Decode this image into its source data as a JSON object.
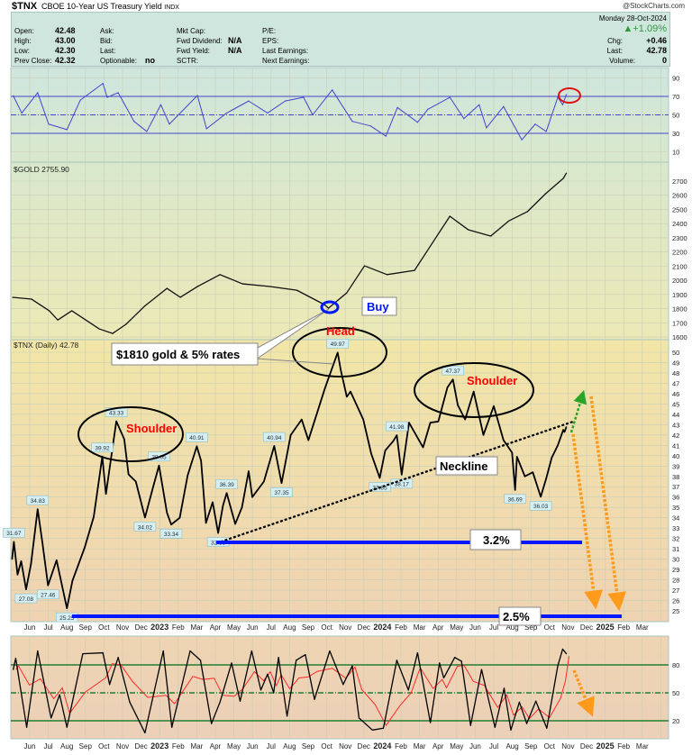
{
  "header": {
    "symbol": "$TNX",
    "name": "CBOE 10-Year US Treasury Yield",
    "exchange": "INDX",
    "copyright": "@StockCharts.com"
  },
  "info": {
    "open_label": "Open:",
    "open": "42.48",
    "high_label": "High:",
    "high": "43.00",
    "low_label": "Low:",
    "low": "42.30",
    "prev_close_label": "Prev Close:",
    "prev_close": "42.32",
    "ask_label": "Ask:",
    "bid_label": "Bid:",
    "last_label_mid": "Last:",
    "optionable_label": "Optionable:",
    "optionable": "no",
    "mkt_cap_label": "Mkt Cap:",
    "fwd_dividend_label": "Fwd Dividend:",
    "fwd_dividend": "N/A",
    "fwd_yield_label": "Fwd Yield:",
    "fwd_yield": "N/A",
    "sctr_label": "SCTR:",
    "pe_label": "P/E:",
    "eps_label": "EPS:",
    "last_earnings_label": "Last Earnings:",
    "next_earnings_label": "Next Earnings:",
    "date": "Monday  28-Oct-2024",
    "pct_change": "▲+1.09%",
    "chg_label": "Chg:",
    "chg": "+0.46",
    "last_label": "Last:",
    "last": "42.78",
    "volume_label": "Volume:",
    "volume": "0",
    "up_color": "#2e9b3a"
  },
  "annotations": {
    "left_shoulder": "Shoulder",
    "head": "Head",
    "right_shoulder": "Shoulder",
    "neckline": "Neckline",
    "callout": "$1810 gold & 5% rates",
    "buy": "Buy",
    "level_high": "3.2%",
    "level_low": "2.5%",
    "text_color": "#ff0000",
    "level_color": "#0018ff",
    "target_arrow_color": "#ff9a1a",
    "up_arrow_color": "#2aa52a"
  },
  "chart_data": [
    {
      "panel": "rsi",
      "type": "line",
      "color": "#4444cc",
      "yticks": [
        "10",
        "30",
        "50",
        "70",
        "90"
      ],
      "reference_lines": [
        30,
        50,
        70
      ],
      "points": [
        [
          "2022-05-05",
          70.6
        ],
        [
          "2022-05-19",
          52
        ],
        [
          "2022-06-14",
          74
        ],
        [
          "2022-07-02",
          40
        ],
        [
          "2022-08-01",
          34
        ],
        [
          "2022-08-23",
          66
        ],
        [
          "2022-09-29",
          84
        ],
        [
          "2022-10-06",
          69
        ],
        [
          "2022-10-24",
          74
        ],
        [
          "2022-11-19",
          43
        ],
        [
          "2022-12-10",
          32
        ],
        [
          "2023-01-02",
          61
        ],
        [
          "2023-01-16",
          40
        ],
        [
          "2023-03-03",
          71
        ],
        [
          "2023-03-18",
          35
        ],
        [
          "2023-04-20",
          52
        ],
        [
          "2023-05-26",
          65
        ],
        [
          "2023-06-26",
          52
        ],
        [
          "2023-07-25",
          65
        ],
        [
          "2023-08-24",
          69
        ],
        [
          "2023-09-08",
          50
        ],
        [
          "2023-10-10",
          77
        ],
        [
          "2023-11-12",
          43
        ],
        [
          "2023-12-12",
          38
        ],
        [
          "2024-01-06",
          27
        ],
        [
          "2024-01-25",
          58
        ],
        [
          "2024-02-27",
          42
        ],
        [
          "2024-03-15",
          56
        ],
        [
          "2024-04-20",
          69
        ],
        [
          "2024-05-13",
          46
        ],
        [
          "2024-06-07",
          61
        ],
        [
          "2024-06-19",
          36
        ],
        [
          "2024-07-17",
          59
        ],
        [
          "2024-08-16",
          23
        ],
        [
          "2024-09-07",
          40
        ],
        [
          "2024-09-25",
          32
        ],
        [
          "2024-10-14",
          69
        ],
        [
          "2024-10-22",
          61
        ],
        [
          "2024-10-28",
          72
        ]
      ]
    },
    {
      "panel": "gold",
      "type": "line",
      "title": "$GOLD 2755.90",
      "color": "#111111",
      "yticks": [
        "1600",
        "1700",
        "1800",
        "1900",
        "2000",
        "2100",
        "2200",
        "2300",
        "2400",
        "2500",
        "2600",
        "2700"
      ],
      "points": [
        [
          "2022-05-04",
          1880
        ],
        [
          "2022-06-04",
          1867
        ],
        [
          "2022-07-03",
          1785
        ],
        [
          "2022-07-17",
          1720
        ],
        [
          "2022-08-09",
          1785
        ],
        [
          "2022-09-23",
          1657
        ],
        [
          "2022-10-15",
          1625
        ],
        [
          "2022-11-06",
          1690
        ],
        [
          "2022-12-06",
          1816
        ],
        [
          "2023-01-12",
          1943
        ],
        [
          "2023-02-03",
          1880
        ],
        [
          "2023-03-03",
          1956
        ],
        [
          "2023-04-09",
          2040
        ],
        [
          "2023-05-16",
          1975
        ],
        [
          "2023-06-30",
          1956
        ],
        [
          "2023-08-13",
          1930
        ],
        [
          "2023-09-27",
          1829
        ],
        [
          "2023-10-04",
          1804
        ],
        [
          "2023-11-03",
          1912
        ],
        [
          "2023-12-02",
          2102
        ],
        [
          "2024-01-08",
          2040
        ],
        [
          "2024-02-22",
          2070
        ],
        [
          "2024-03-22",
          2261
        ],
        [
          "2024-04-20",
          2452
        ],
        [
          "2024-05-20",
          2357
        ],
        [
          "2024-06-26",
          2312
        ],
        [
          "2024-07-26",
          2420
        ],
        [
          "2024-08-25",
          2484
        ],
        [
          "2024-09-24",
          2611
        ],
        [
          "2024-10-23",
          2719
        ],
        [
          "2024-10-28",
          2755.9
        ]
      ]
    },
    {
      "panel": "tnx",
      "type": "line",
      "title": "$TNX (Daily) 42.78",
      "color": "#000000",
      "yticks": [
        "25",
        "26",
        "27",
        "28",
        "29",
        "30",
        "31",
        "32",
        "33",
        "34",
        "35",
        "36",
        "37",
        "38",
        "39",
        "40",
        "41",
        "42",
        "43",
        "44",
        "45",
        "46",
        "47",
        "48",
        "49",
        "50"
      ],
      "points": [
        [
          "2022-05-03",
          30.0
        ],
        [
          "2022-05-06",
          31.67
        ],
        [
          "2022-05-12",
          28.5
        ],
        [
          "2022-05-18",
          29.8
        ],
        [
          "2022-05-26",
          27.08
        ],
        [
          "2022-06-03",
          29.5
        ],
        [
          "2022-06-14",
          34.83
        ],
        [
          "2022-06-22",
          31.5
        ],
        [
          "2022-07-01",
          27.46
        ],
        [
          "2022-07-15",
          29.9
        ],
        [
          "2022-08-01",
          25.25
        ],
        [
          "2022-08-10",
          27.9
        ],
        [
          "2022-08-30",
          31.1
        ],
        [
          "2022-09-14",
          34.1
        ],
        [
          "2022-09-28",
          39.92
        ],
        [
          "2022-10-04",
          36.3
        ],
        [
          "2022-10-21",
          43.33
        ],
        [
          "2022-11-03",
          41.6
        ],
        [
          "2022-11-10",
          38.2
        ],
        [
          "2022-11-22",
          37.5
        ],
        [
          "2022-12-07",
          34.02
        ],
        [
          "2022-12-20",
          36.9
        ],
        [
          "2022-12-30",
          39.05
        ],
        [
          "2023-01-12",
          34.5
        ],
        [
          "2023-01-19",
          33.34
        ],
        [
          "2023-02-02",
          34
        ],
        [
          "2023-02-15",
          38.1
        ],
        [
          "2023-03-02",
          40.91
        ],
        [
          "2023-03-09",
          39.5
        ],
        [
          "2023-03-17",
          33.5
        ],
        [
          "2023-03-28",
          35.5
        ],
        [
          "2023-04-06",
          32.53
        ],
        [
          "2023-04-14",
          35.2
        ],
        [
          "2023-04-20",
          36.39
        ],
        [
          "2023-05-04",
          33.4
        ],
        [
          "2023-05-15",
          35
        ],
        [
          "2023-05-26",
          38.5
        ],
        [
          "2023-06-01",
          36
        ],
        [
          "2023-06-20",
          37.5
        ],
        [
          "2023-07-07",
          40.94
        ],
        [
          "2023-07-19",
          37.35
        ],
        [
          "2023-08-03",
          42
        ],
        [
          "2023-08-21",
          43.5
        ],
        [
          "2023-09-01",
          41.5
        ],
        [
          "2023-09-28",
          46.5
        ],
        [
          "2023-10-19",
          49.97
        ],
        [
          "2023-10-24",
          48.3
        ],
        [
          "2023-11-03",
          45.7
        ],
        [
          "2023-11-09",
          46.2
        ],
        [
          "2023-11-30",
          43.5
        ],
        [
          "2023-12-13",
          40.2
        ],
        [
          "2023-12-27",
          37.85
        ],
        [
          "2024-01-05",
          40.5
        ],
        [
          "2024-01-18",
          41.4
        ],
        [
          "2024-01-24",
          41.98
        ],
        [
          "2024-02-01",
          38.17
        ],
        [
          "2024-02-13",
          43.2
        ],
        [
          "2024-03-07",
          40.8
        ],
        [
          "2024-03-19",
          43.2
        ],
        [
          "2024-04-01",
          43.3
        ],
        [
          "2024-04-16",
          46.6
        ],
        [
          "2024-04-25",
          47.37
        ],
        [
          "2024-05-03",
          44.9
        ],
        [
          "2024-05-15",
          43.5
        ],
        [
          "2024-05-29",
          46.2
        ],
        [
          "2024-06-14",
          42.0
        ],
        [
          "2024-07-01",
          44.8
        ],
        [
          "2024-07-17",
          41.5
        ],
        [
          "2024-07-31",
          40.3
        ],
        [
          "2024-08-05",
          36.69
        ],
        [
          "2024-08-08",
          39.9
        ],
        [
          "2024-08-21",
          38.0
        ],
        [
          "2024-09-03",
          38.4
        ],
        [
          "2024-09-16",
          36.03
        ],
        [
          "2024-09-25",
          37.8
        ],
        [
          "2024-10-04",
          39.8
        ],
        [
          "2024-10-14",
          41.0
        ],
        [
          "2024-10-23",
          42.5
        ],
        [
          "2024-10-25",
          42.3
        ],
        [
          "2024-10-28",
          42.78
        ]
      ],
      "labels": [
        {
          "date": "2022-05-06",
          "value": 31.67,
          "pos": "above"
        },
        {
          "date": "2022-05-26",
          "value": 27.08,
          "pos": "below"
        },
        {
          "date": "2022-06-14",
          "value": 34.83,
          "pos": "above"
        },
        {
          "date": "2022-07-01",
          "value": 27.46,
          "pos": "below"
        },
        {
          "date": "2022-08-01",
          "value": 25.25,
          "pos": "below"
        },
        {
          "date": "2022-09-28",
          "value": 39.92,
          "pos": "above"
        },
        {
          "date": "2022-10-21",
          "value": 43.33,
          "pos": "above"
        },
        {
          "date": "2022-12-07",
          "value": 34.02,
          "pos": "below"
        },
        {
          "date": "2022-12-30",
          "value": 39.05,
          "pos": "above"
        },
        {
          "date": "2023-01-19",
          "value": 33.34,
          "pos": "below"
        },
        {
          "date": "2023-03-02",
          "value": 40.91,
          "pos": "above"
        },
        {
          "date": "2023-04-06",
          "value": 32.53,
          "pos": "below"
        },
        {
          "date": "2023-04-20",
          "value": 36.39,
          "pos": "above"
        },
        {
          "date": "2023-07-07",
          "value": 40.94,
          "pos": "above"
        },
        {
          "date": "2023-07-19",
          "value": 37.35,
          "pos": "below"
        },
        {
          "date": "2023-10-19",
          "value": 49.97,
          "pos": "above"
        },
        {
          "date": "2023-12-27",
          "value": 37.85,
          "pos": "below"
        },
        {
          "date": "2024-01-24",
          "value": 41.98,
          "pos": "above"
        },
        {
          "date": "2024-02-01",
          "value": 38.17,
          "pos": "below"
        },
        {
          "date": "2024-04-25",
          "value": 47.37,
          "pos": "above"
        },
        {
          "date": "2024-08-05",
          "value": 36.69,
          "pos": "below"
        },
        {
          "date": "2024-09-16",
          "value": 36.03,
          "pos": "below"
        }
      ]
    },
    {
      "panel": "stochastic",
      "type": "line",
      "color": "#000000",
      "signal_color": "#ff2a2a",
      "yticks": [
        "20",
        "50",
        "80"
      ],
      "reference_lines": [
        20,
        50,
        80
      ],
      "points": [
        [
          "2022-05-05",
          75
        ],
        [
          "2022-05-09",
          87
        ],
        [
          "2022-05-27",
          13
        ],
        [
          "2022-06-14",
          95
        ],
        [
          "2022-07-06",
          23
        ],
        [
          "2022-07-20",
          48
        ],
        [
          "2022-08-01",
          13
        ],
        [
          "2022-08-27",
          92
        ],
        [
          "2022-09-29",
          93
        ],
        [
          "2022-10-10",
          59
        ],
        [
          "2022-10-24",
          88
        ],
        [
          "2022-11-12",
          40
        ],
        [
          "2022-12-07",
          7
        ],
        [
          "2023-01-06",
          95
        ],
        [
          "2023-01-20",
          13
        ],
        [
          "2023-02-19",
          95
        ],
        [
          "2023-03-08",
          85
        ],
        [
          "2023-03-26",
          17
        ],
        [
          "2023-04-09",
          40
        ],
        [
          "2023-04-28",
          82
        ],
        [
          "2023-05-12",
          41
        ],
        [
          "2023-05-31",
          95
        ],
        [
          "2023-06-15",
          53
        ],
        [
          "2023-06-26",
          70
        ],
        [
          "2023-07-06",
          50
        ],
        [
          "2023-07-14",
          88
        ],
        [
          "2023-07-28",
          25
        ],
        [
          "2023-08-12",
          85
        ],
        [
          "2023-08-27",
          91
        ],
        [
          "2023-09-11",
          43
        ],
        [
          "2023-10-06",
          95
        ],
        [
          "2023-10-28",
          59
        ],
        [
          "2023-11-12",
          79
        ],
        [
          "2023-11-23",
          23
        ],
        [
          "2023-12-15",
          10
        ],
        [
          "2024-01-02",
          12
        ],
        [
          "2024-01-24",
          85
        ],
        [
          "2024-02-12",
          53
        ],
        [
          "2024-02-27",
          93
        ],
        [
          "2024-03-19",
          18
        ],
        [
          "2024-04-03",
          82
        ],
        [
          "2024-04-10",
          66
        ],
        [
          "2024-04-28",
          88
        ],
        [
          "2024-05-09",
          84
        ],
        [
          "2024-05-24",
          15
        ],
        [
          "2024-06-11",
          75
        ],
        [
          "2024-07-03",
          13
        ],
        [
          "2024-07-18",
          55
        ],
        [
          "2024-07-29",
          10
        ],
        [
          "2024-08-12",
          40
        ],
        [
          "2024-08-24",
          17
        ],
        [
          "2024-09-08",
          41
        ],
        [
          "2024-09-26",
          12
        ],
        [
          "2024-10-14",
          79
        ],
        [
          "2024-10-22",
          97
        ],
        [
          "2024-10-28",
          92
        ]
      ]
    }
  ],
  "x_axis": {
    "months": [
      "Jun",
      "Jul",
      "Aug",
      "Sep",
      "Oct",
      "Nov",
      "Dec",
      "2023",
      "Feb",
      "Mar",
      "Apr",
      "May",
      "Jun",
      "Jul",
      "Aug",
      "Sep",
      "Oct",
      "Nov",
      "Dec",
      "2024",
      "Feb",
      "Mar",
      "Apr",
      "May",
      "Jun",
      "Jul",
      "Aug",
      "Sep",
      "Oct",
      "Nov",
      "Dec",
      "2025",
      "Feb",
      "Mar"
    ]
  }
}
